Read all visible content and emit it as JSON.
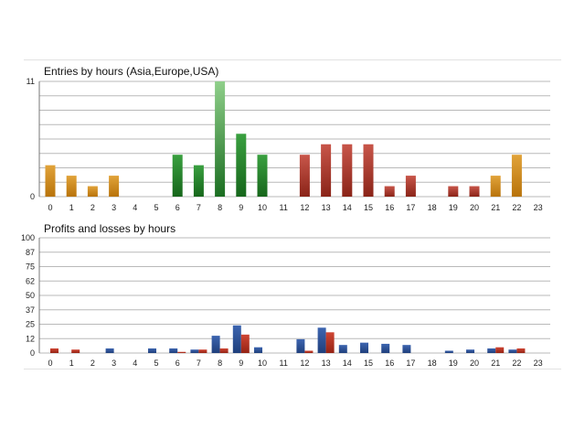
{
  "colors": {
    "asia": "#c9850f",
    "europe": "#1f7a24",
    "europe_highlight": "#3a9a3e",
    "usa": "#a8382a",
    "profit": "#2b4f94",
    "loss": "#b83220",
    "grid": "#b9b9b9",
    "axis": "#777777"
  },
  "chart_data": [
    {
      "type": "bar",
      "title": "Entries by hours (Asia,Europe,USA)",
      "xlabel": "",
      "ylabel": "",
      "categories": [
        "0",
        "1",
        "2",
        "3",
        "4",
        "5",
        "6",
        "7",
        "8",
        "9",
        "10",
        "11",
        "12",
        "13",
        "14",
        "15",
        "16",
        "17",
        "18",
        "19",
        "20",
        "21",
        "22",
        "23"
      ],
      "values": [
        3,
        2,
        1,
        2,
        0,
        0,
        4,
        3,
        11,
        6,
        4,
        0,
        4,
        5,
        5,
        5,
        1,
        2,
        0,
        1,
        1,
        2,
        4,
        0
      ],
      "bar_session": [
        "asia",
        "asia",
        "asia",
        "asia",
        "asia",
        "asia",
        "europe",
        "europe",
        "europe",
        "europe",
        "europe",
        "europe",
        "usa",
        "usa",
        "usa",
        "usa",
        "usa",
        "usa",
        "usa",
        "usa",
        "usa",
        "asia",
        "asia",
        "asia"
      ],
      "ylim": [
        0,
        11
      ],
      "y_ticks": [
        "0",
        "11"
      ],
      "grid": true
    },
    {
      "type": "bar",
      "title": "Profits and losses by hours",
      "xlabel": "",
      "ylabel": "",
      "categories": [
        "0",
        "1",
        "2",
        "3",
        "4",
        "5",
        "6",
        "7",
        "8",
        "9",
        "10",
        "11",
        "12",
        "13",
        "14",
        "15",
        "16",
        "17",
        "18",
        "19",
        "20",
        "21",
        "22",
        "23"
      ],
      "series": [
        {
          "color": "#2b4f94",
          "values": [
            0,
            0,
            0,
            4,
            0,
            4,
            4,
            3,
            15,
            24,
            5,
            0,
            12,
            22,
            7,
            9,
            8,
            7,
            0,
            2,
            3,
            4,
            3,
            0
          ]
        },
        {
          "color": "#b83220",
          "values": [
            4,
            3,
            0,
            0,
            0,
            0,
            1,
            3,
            4,
            16,
            0,
            0,
            2,
            18,
            0,
            0,
            0,
            0,
            0,
            0,
            0,
            5,
            4,
            0
          ]
        }
      ],
      "ylim": [
        0,
        100
      ],
      "y_ticks": [
        "0",
        "12",
        "25",
        "37",
        "50",
        "62",
        "75",
        "87",
        "100"
      ],
      "grid": true
    }
  ]
}
